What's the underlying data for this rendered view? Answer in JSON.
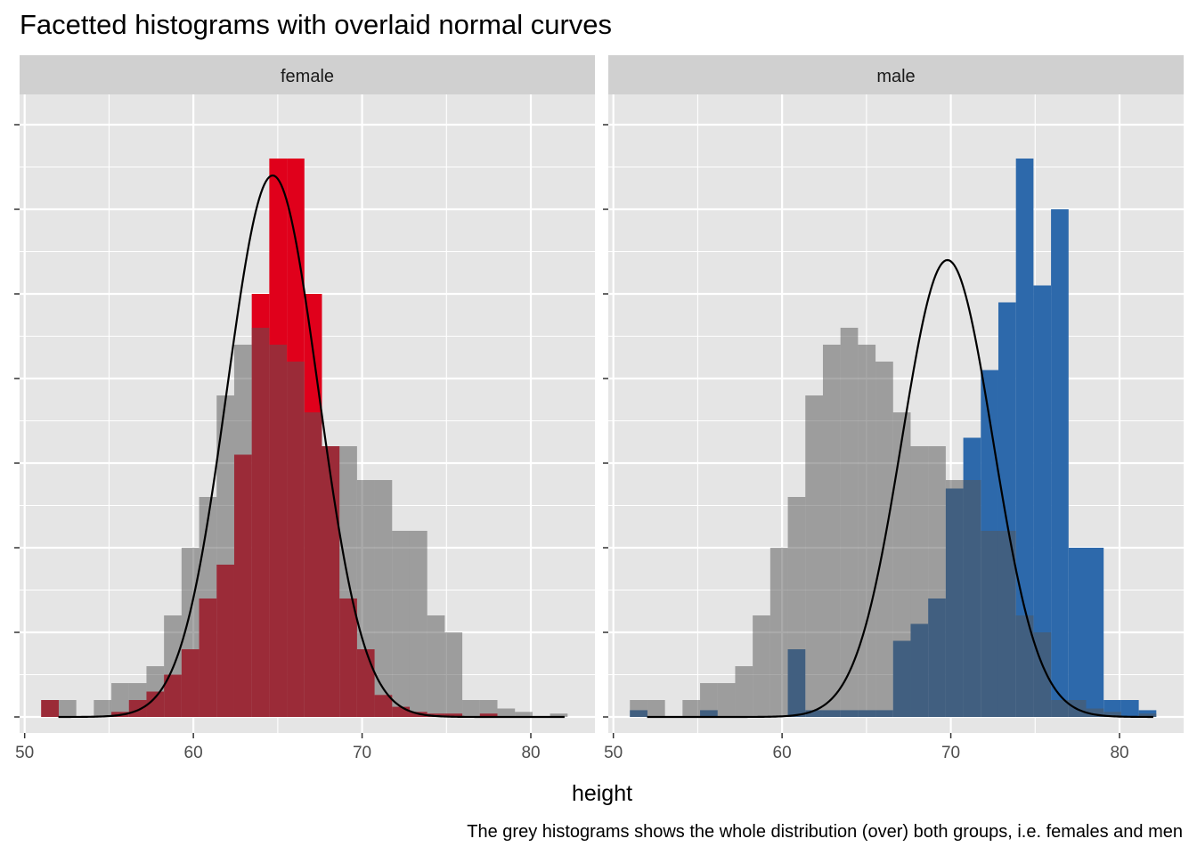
{
  "title": "Facetted histograms with overlaid normal curves",
  "caption": "The grey histograms shows the whole distribution (over) both groups, i.e. females and men",
  "colors": {
    "panel_bg": "#e5e5e5",
    "strip_bg": "#d0d0d0",
    "grid": "#ffffff",
    "overall": "#9a9a9a",
    "female": "#e0001b",
    "male": "#2d69ab",
    "curve": "#000000"
  },
  "chart_data": {
    "type": "histogram",
    "xlabel": "height",
    "ylabel": "",
    "xlim": [
      50,
      83
    ],
    "x_ticks": [
      50,
      60,
      70,
      80
    ],
    "ylim": [
      0,
      35
    ],
    "bin_width": 1.04,
    "bin_centers": [
      51.5,
      52.54,
      53.58,
      54.62,
      55.66,
      56.7,
      57.74,
      58.78,
      59.82,
      60.86,
      61.9,
      62.94,
      63.98,
      65.02,
      66.06,
      67.1,
      68.14,
      69.18,
      70.22,
      71.26,
      72.3,
      73.34,
      74.38,
      75.42,
      76.46,
      77.5,
      78.54,
      79.58,
      80.62,
      81.66
    ],
    "overall_counts": [
      1,
      1,
      0,
      1,
      2,
      2,
      3,
      6,
      10,
      13,
      19,
      22,
      23,
      22,
      21,
      18,
      16,
      16,
      14,
      14,
      11,
      11,
      6,
      5,
      1,
      1,
      0.5,
      0.3,
      0,
      0.2
    ],
    "legend": "none",
    "facets": [
      {
        "label": "female",
        "color": "#e0001b",
        "counts": [
          1,
          0,
          0,
          0,
          0.3,
          1,
          1.5,
          2.5,
          4,
          7,
          9,
          15.5,
          25,
          33,
          33,
          25,
          16,
          7,
          4,
          1.3,
          0.6,
          0.3,
          0.2,
          0.2,
          0,
          0.2,
          0,
          0,
          0,
          0
        ],
        "normal_curve": {
          "mean": 64.7,
          "sd": 2.7,
          "peak": 32
        }
      },
      {
        "label": "male",
        "color": "#2d69ab",
        "counts": [
          0.4,
          0,
          0,
          0,
          0.4,
          0,
          0,
          0,
          0,
          4,
          0.4,
          0.4,
          0.4,
          0.4,
          0.4,
          4.5,
          5.5,
          7,
          13.5,
          16.5,
          20.5,
          24.5,
          33,
          25.5,
          30,
          10,
          10,
          1,
          1,
          0.4
        ],
        "normal_curve": {
          "mean": 69.8,
          "sd": 2.7,
          "peak": 27
        }
      }
    ]
  }
}
